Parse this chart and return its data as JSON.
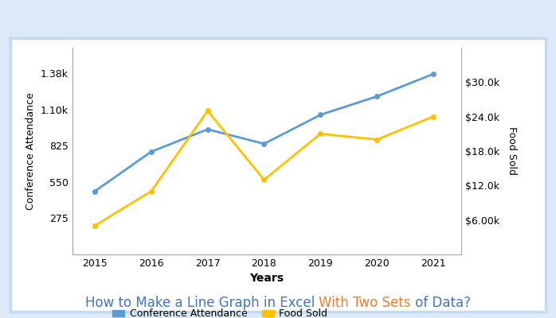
{
  "years": [
    2015,
    2016,
    2017,
    2018,
    2019,
    2020,
    2021
  ],
  "conference_attendance": [
    480,
    780,
    950,
    840,
    1060,
    1200,
    1370
  ],
  "food_sold": [
    5000,
    11000,
    25000,
    13000,
    21000,
    20000,
    24000
  ],
  "left_ylim": [
    0,
    1570
  ],
  "left_yticks": [
    275,
    550,
    825,
    1100,
    1375
  ],
  "left_ytick_labels": [
    "275",
    "550",
    "825",
    "1.10k",
    "1.38k"
  ],
  "right_ylim": [
    0,
    36000
  ],
  "right_yticks": [
    6000,
    12000,
    18000,
    24000,
    30000
  ],
  "right_ytick_labels": [
    "$6.00k",
    "$12.0k",
    "$18.0k",
    "$24.0k",
    "$30.0k"
  ],
  "xlabel": "Years",
  "left_ylabel": "Conference Attendance",
  "right_ylabel": "Food Sold",
  "line1_color": "#5B9BD5",
  "line2_color": "#FFC000",
  "line1_label": "Conference Attendance",
  "line2_label": "Food Sold",
  "border_color": "#C5D9F1",
  "background_color": "#FFFFFF",
  "outer_background": "#DCE9F7",
  "title_parts": [
    "How to Make a Line Graph in Excel ",
    "With Two Sets",
    " of Data?"
  ],
  "title_colors": [
    "#4472C4",
    "#ED7D31",
    "#4472C4"
  ],
  "title_fontsize": 12,
  "spine_color": "#AAAAAA",
  "tick_fontsize": 9,
  "axis_label_fontsize": 9,
  "xlabel_fontsize": 10
}
